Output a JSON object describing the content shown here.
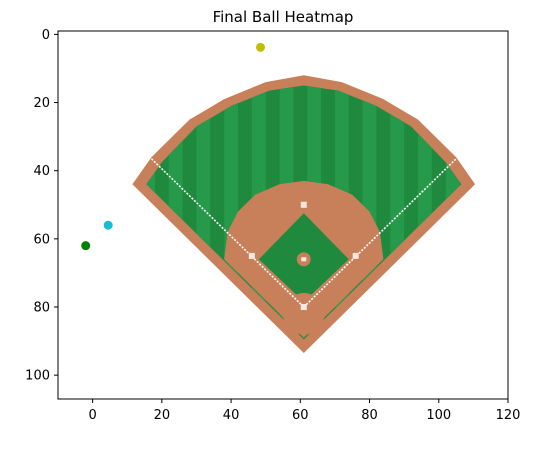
{
  "chart_data": {
    "type": "scatter",
    "title": "Final Ball Heatmap",
    "xlabel": "",
    "ylabel": "",
    "xlim": [
      -10,
      120
    ],
    "ylim": [
      107,
      -1
    ],
    "y_inverted": true,
    "xticks": [
      0,
      20,
      40,
      60,
      80,
      100,
      120
    ],
    "yticks": [
      0,
      20,
      40,
      60,
      80,
      100
    ],
    "xtick_labels": [
      "0",
      "20",
      "40",
      "60",
      "80",
      "100",
      "120"
    ],
    "ytick_labels": [
      "0",
      "20",
      "40",
      "60",
      "80",
      "100"
    ],
    "grid": false,
    "background_image": "baseball-field",
    "points": [
      {
        "x": 48.5,
        "y": 3.8,
        "color": "#bfbf00"
      },
      {
        "x": 4.5,
        "y": 56.0,
        "color": "#17becf"
      },
      {
        "x": -2.0,
        "y": 62.0,
        "color": "#008000"
      }
    ]
  }
}
